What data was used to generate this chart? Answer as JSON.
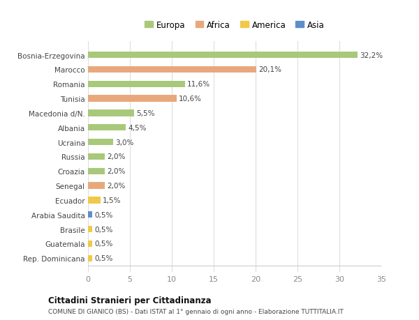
{
  "categories": [
    "Rep. Dominicana",
    "Guatemala",
    "Brasile",
    "Arabia Saudita",
    "Ecuador",
    "Senegal",
    "Croazia",
    "Russia",
    "Ucraina",
    "Albania",
    "Macedonia d/N.",
    "Tunisia",
    "Romania",
    "Marocco",
    "Bosnia-Erzegovina"
  ],
  "values": [
    0.5,
    0.5,
    0.5,
    0.5,
    1.5,
    2.0,
    2.0,
    2.0,
    3.0,
    4.5,
    5.5,
    10.6,
    11.6,
    20.1,
    32.2
  ],
  "labels": [
    "0,5%",
    "0,5%",
    "0,5%",
    "0,5%",
    "1,5%",
    "2,0%",
    "2,0%",
    "2,0%",
    "3,0%",
    "4,5%",
    "5,5%",
    "10,6%",
    "11,6%",
    "20,1%",
    "32,2%"
  ],
  "continent": [
    "America",
    "America",
    "America",
    "Asia",
    "America",
    "Africa",
    "Europa",
    "Europa",
    "Europa",
    "Europa",
    "Europa",
    "Africa",
    "Europa",
    "Africa",
    "Europa"
  ],
  "colors": {
    "Europa": "#a8c87a",
    "Africa": "#e8a87c",
    "America": "#f0c84a",
    "Asia": "#5b8fc9"
  },
  "xlim": [
    0,
    35
  ],
  "xticks": [
    0,
    5,
    10,
    15,
    20,
    25,
    30,
    35
  ],
  "title": "Cittadini Stranieri per Cittadinanza",
  "subtitle": "COMUNE DI GIANICO (BS) - Dati ISTAT al 1° gennaio di ogni anno - Elaborazione TUTTITALIA.IT",
  "bg_color": "#ffffff",
  "grid_color": "#dddddd",
  "bar_height": 0.45
}
